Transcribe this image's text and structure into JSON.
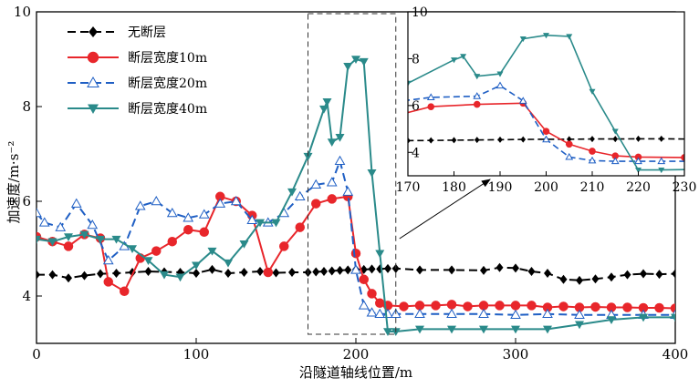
{
  "chart_data": {
    "type": "line",
    "xlabel": "沿隧道轴线位置/m",
    "ylabel": "加速度/m·s⁻²",
    "xlim": [
      0,
      400
    ],
    "ylim": [
      3,
      10
    ],
    "xticks": [
      "0",
      "100",
      "200",
      "300",
      "400"
    ],
    "yticks": [
      "4",
      "6",
      "8",
      "10"
    ],
    "legend_position": "top-left",
    "zoom_region": {
      "x": [
        170,
        225
      ],
      "y": [
        3,
        10
      ]
    },
    "series": [
      {
        "name": "无断层",
        "color": "#000000",
        "marker": "diamond",
        "line": "dashed",
        "x": [
          0,
          10,
          20,
          30,
          40,
          50,
          60,
          70,
          80,
          90,
          100,
          110,
          120,
          130,
          140,
          150,
          160,
          170,
          175,
          180,
          185,
          190,
          195,
          200,
          205,
          210,
          215,
          220,
          225,
          240,
          260,
          280,
          290,
          300,
          310,
          320,
          330,
          340,
          350,
          360,
          370,
          380,
          390,
          400
        ],
        "values": [
          4.45,
          4.45,
          4.38,
          4.43,
          4.47,
          4.48,
          4.5,
          4.52,
          4.51,
          4.5,
          4.48,
          4.56,
          4.48,
          4.5,
          4.52,
          4.49,
          4.5,
          4.5,
          4.51,
          4.52,
          4.53,
          4.54,
          4.55,
          4.56,
          4.56,
          4.57,
          4.57,
          4.58,
          4.58,
          4.55,
          4.55,
          4.54,
          4.6,
          4.59,
          4.52,
          4.48,
          4.35,
          4.33,
          4.36,
          4.4,
          4.45,
          4.47,
          4.46,
          4.47
        ]
      },
      {
        "name": "断层宽度10m",
        "color": "#e8262b",
        "marker": "circle",
        "line": "solid",
        "x": [
          0,
          10,
          20,
          30,
          40,
          45,
          55,
          65,
          75,
          85,
          95,
          105,
          115,
          125,
          135,
          145,
          155,
          165,
          175,
          185,
          195,
          200,
          205,
          210,
          215,
          220,
          230,
          240,
          250,
          260,
          270,
          280,
          290,
          300,
          310,
          320,
          330,
          340,
          350,
          360,
          370,
          380,
          390,
          400
        ],
        "values": [
          5.25,
          5.15,
          5.05,
          5.3,
          5.22,
          4.3,
          4.1,
          4.8,
          4.95,
          5.15,
          5.4,
          5.35,
          6.1,
          6.0,
          5.7,
          4.5,
          5.05,
          5.45,
          5.95,
          6.05,
          6.1,
          4.9,
          4.35,
          4.05,
          3.85,
          3.8,
          3.78,
          3.8,
          3.8,
          3.82,
          3.78,
          3.8,
          3.8,
          3.8,
          3.8,
          3.76,
          3.78,
          3.76,
          3.77,
          3.76,
          3.76,
          3.75,
          3.75,
          3.74
        ]
      },
      {
        "name": "断层宽度20m",
        "color": "#1f5fc4",
        "marker": "triangle-open",
        "line": "dashed",
        "x": [
          0,
          5,
          15,
          25,
          35,
          45,
          55,
          65,
          75,
          85,
          95,
          105,
          115,
          125,
          135,
          145,
          155,
          165,
          175,
          185,
          190,
          195,
          200,
          205,
          210,
          215,
          220,
          225,
          240,
          260,
          280,
          300,
          320,
          340,
          360,
          380,
          400
        ],
        "values": [
          5.75,
          5.55,
          5.45,
          5.95,
          5.5,
          4.75,
          5.05,
          5.9,
          6.0,
          5.75,
          5.65,
          5.72,
          5.95,
          6.0,
          5.6,
          5.55,
          5.75,
          6.1,
          6.35,
          6.4,
          6.85,
          6.2,
          4.55,
          3.8,
          3.65,
          3.62,
          3.62,
          3.62,
          3.62,
          3.62,
          3.62,
          3.6,
          3.62,
          3.6,
          3.6,
          3.6,
          3.6
        ]
      },
      {
        "name": "断层宽度40m",
        "color": "#2a8a8a",
        "marker": "triangle-down",
        "line": "solid",
        "x": [
          0,
          10,
          20,
          30,
          40,
          50,
          60,
          70,
          80,
          90,
          100,
          110,
          120,
          130,
          140,
          150,
          160,
          170,
          180,
          182,
          185,
          190,
          195,
          200,
          205,
          210,
          215,
          220,
          225,
          240,
          260,
          280,
          300,
          320,
          340,
          360,
          380,
          400
        ],
        "values": [
          5.2,
          5.15,
          5.25,
          5.3,
          5.2,
          5.2,
          5.0,
          4.75,
          4.45,
          4.4,
          4.65,
          4.95,
          4.7,
          5.1,
          5.55,
          5.55,
          6.2,
          6.95,
          7.95,
          8.1,
          7.25,
          7.35,
          8.85,
          9.0,
          8.95,
          6.6,
          4.9,
          3.25,
          3.25,
          3.3,
          3.3,
          3.3,
          3.3,
          3.3,
          3.4,
          3.5,
          3.55,
          3.55
        ]
      }
    ],
    "inset": {
      "xlim": [
        170,
        230
      ],
      "ylim": [
        3,
        10
      ],
      "xticks": [
        "170",
        "180",
        "190",
        "200",
        "210",
        "220",
        "230"
      ],
      "yticks": [
        "4",
        "6",
        "8",
        "10"
      ]
    }
  }
}
